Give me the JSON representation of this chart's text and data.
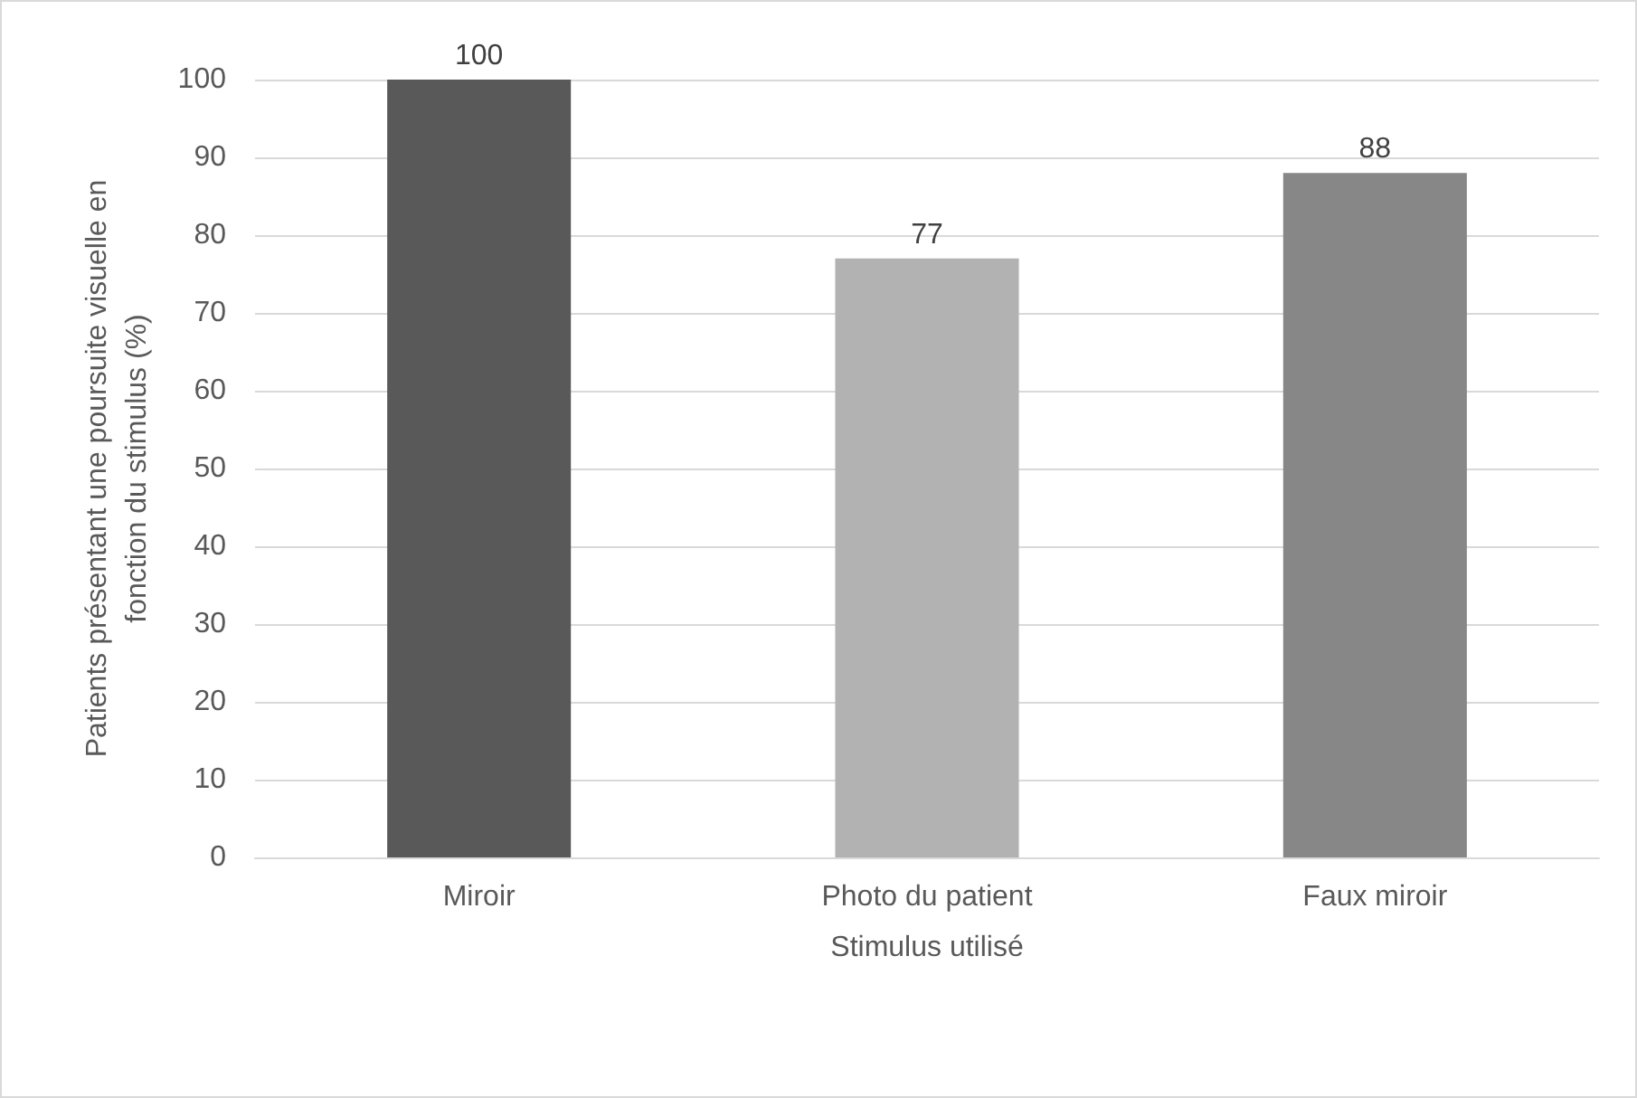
{
  "chart_data": {
    "type": "bar",
    "xlabel": "Stimulus utilisé",
    "ylabel": "Patients présentant une poursuite visuelle en fonction du stimulus (%)",
    "categories": [
      "Miroir",
      "Photo du patient",
      "Faux miroir"
    ],
    "values": [
      100,
      77,
      88
    ],
    "colors": [
      "#595959",
      "#b2b2b2",
      "#878787"
    ],
    "ylim": [
      0,
      100
    ],
    "yticks": [
      0,
      10,
      20,
      30,
      40,
      50,
      60,
      70,
      80,
      90,
      100
    ],
    "grid": "y",
    "data_labels": true
  }
}
